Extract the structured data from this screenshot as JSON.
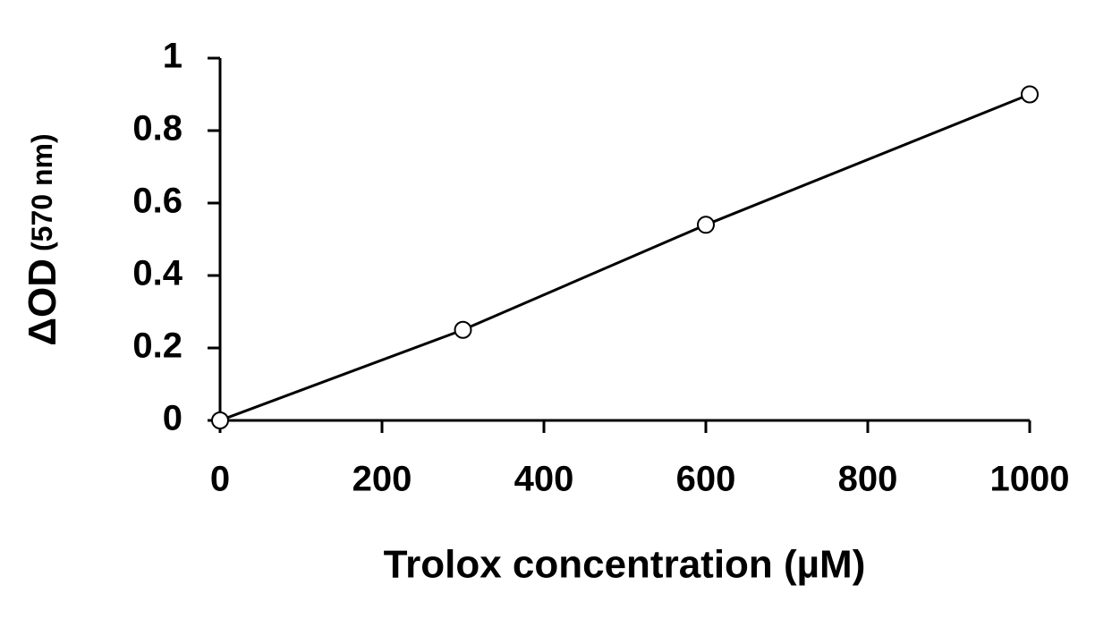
{
  "chart_data": {
    "type": "line",
    "xlabel": "Trolox concentration (µM)",
    "ylabel": "ΔOD",
    "ylabel_unit": "(570 nm)",
    "x": [
      0,
      300,
      600,
      1000
    ],
    "values": [
      0,
      0.25,
      0.54,
      0.9
    ],
    "color": "#000000",
    "marker": "open-circle",
    "xlim": [
      0,
      1000
    ],
    "xticks": [
      0,
      200,
      400,
      600,
      800,
      1000
    ],
    "ylim": [
      0,
      1
    ],
    "yticks": [
      0,
      0.2,
      0.4,
      0.6,
      0.8,
      1
    ],
    "grid": false
  }
}
